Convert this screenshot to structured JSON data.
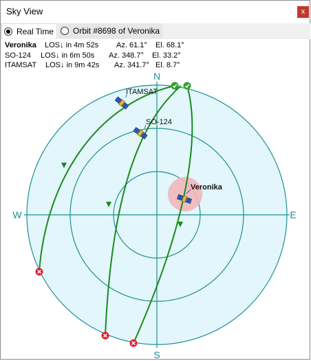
{
  "window": {
    "title": "Sky View",
    "close_label": "x"
  },
  "tabs": [
    {
      "label": "Real Time",
      "selected": true
    },
    {
      "label": "Orbit #8698 of Veronika",
      "selected": false
    }
  ],
  "passes": [
    {
      "name": "Veronika",
      "status": "LOS↓ in 4m 52s",
      "az": "Az. 61.1°",
      "el": "El. 68.1°"
    },
    {
      "name": "SO-124",
      "status": "LOS↓ in 6m 50s",
      "az": "Az. 348.7°",
      "el": "El. 33.2°"
    },
    {
      "name": "ITAMSAT",
      "status": "LOS↓ in 9m 42s",
      "az": "Az. 341.7°",
      "el": "El. 8.7°"
    }
  ],
  "compass": {
    "n": "N",
    "s": "S",
    "e": "E",
    "w": "W"
  },
  "satellite_labels": {
    "itamsat": "ITAMSAT",
    "so124": "SO-124",
    "veronika": "Veronika"
  },
  "colors": {
    "track": "#1a8a1a",
    "grid": "#1f8f8f",
    "disk": "#e2f6fb",
    "aos_marker": "#2fa12f",
    "los_marker": "#e0202a",
    "highlight": "#f2b7b9"
  }
}
